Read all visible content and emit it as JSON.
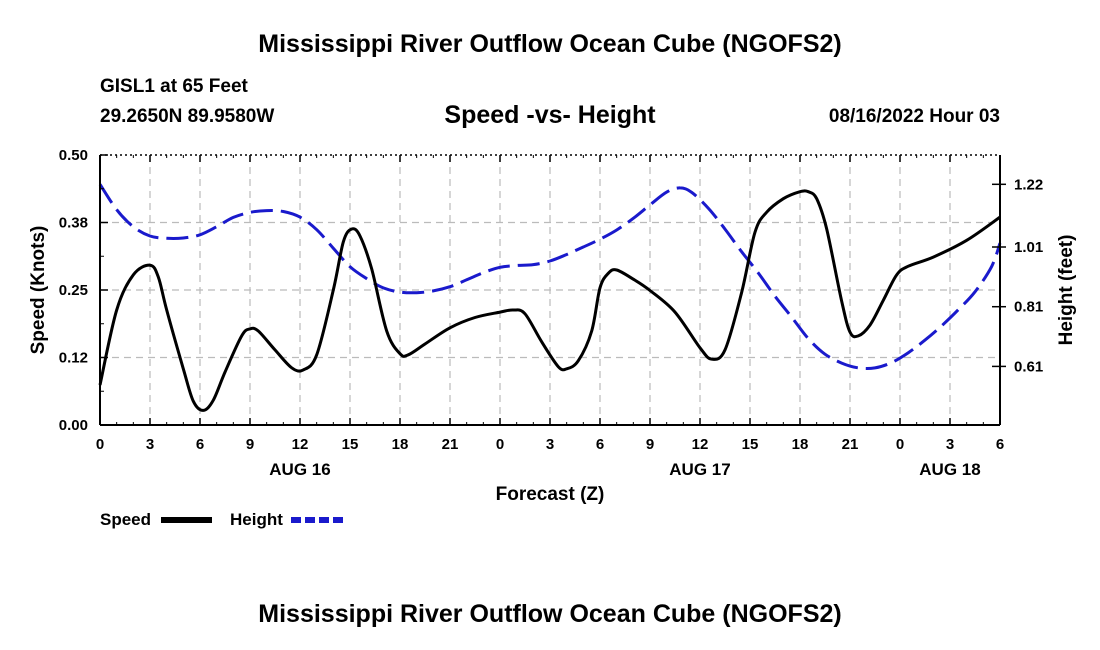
{
  "header": {
    "title": "Mississippi River Outflow Ocean Cube (NGOFS2)",
    "station": "GISL1 at 65 Feet",
    "coords": "29.2650N  89.9580W",
    "subtitle": "Speed -vs- Height",
    "datetime": "08/16/2022 Hour 03"
  },
  "footer": {
    "title": "Mississippi River Outflow Ocean Cube (NGOFS2)"
  },
  "chart_data": {
    "type": "line",
    "title": "Speed -vs- Height",
    "xlabel": "Forecast (Z)",
    "ylabel": "Speed (Knots)",
    "y2label": "Height (feet)",
    "x_range": [
      0,
      54
    ],
    "ylim": [
      0,
      0.5
    ],
    "y2lim": [
      0.4137,
      1.3182
    ],
    "xticks": [
      {
        "x": 0,
        "label": "0"
      },
      {
        "x": 3,
        "label": "3"
      },
      {
        "x": 6,
        "label": "6"
      },
      {
        "x": 9,
        "label": "9"
      },
      {
        "x": 12,
        "label": "12"
      },
      {
        "x": 15,
        "label": "15"
      },
      {
        "x": 18,
        "label": "18"
      },
      {
        "x": 21,
        "label": "21"
      },
      {
        "x": 24,
        "label": "0"
      },
      {
        "x": 27,
        "label": "3"
      },
      {
        "x": 30,
        "label": "6"
      },
      {
        "x": 33,
        "label": "9"
      },
      {
        "x": 36,
        "label": "12"
      },
      {
        "x": 39,
        "label": "15"
      },
      {
        "x": 42,
        "label": "18"
      },
      {
        "x": 45,
        "label": "21"
      },
      {
        "x": 48,
        "label": "0"
      },
      {
        "x": 51,
        "label": "3"
      },
      {
        "x": 54,
        "label": "6"
      }
    ],
    "date_labels": [
      {
        "x": 12,
        "label": "AUG 16"
      },
      {
        "x": 36,
        "label": "AUG 17"
      },
      {
        "x": 51,
        "label": "AUG 18"
      }
    ],
    "yticks": [
      {
        "v": 0.0,
        "label": "0.00"
      },
      {
        "v": 0.125,
        "label": "0.12"
      },
      {
        "v": 0.25,
        "label": "0.25"
      },
      {
        "v": 0.375,
        "label": "0.38"
      },
      {
        "v": 0.5,
        "label": "0.50"
      }
    ],
    "y2ticks": [
      {
        "v": 0.61,
        "label": "0.61"
      },
      {
        "v": 0.81,
        "label": "0.81"
      },
      {
        "v": 1.01,
        "label": "1.01"
      },
      {
        "v": 1.22,
        "label": "1.22"
      }
    ],
    "legend": [
      {
        "name": "Speed",
        "color": "#000000"
      },
      {
        "name": "Height",
        "color": "#1a1acc"
      }
    ],
    "series": [
      {
        "name": "Speed",
        "axis": "left",
        "color": "#000000",
        "style": "solid",
        "points": [
          [
            0,
            0.074
          ],
          [
            1,
            0.213
          ],
          [
            2,
            0.278
          ],
          [
            3,
            0.296
          ],
          [
            3.5,
            0.274
          ],
          [
            4,
            0.213
          ],
          [
            5,
            0.104
          ],
          [
            5.6,
            0.044
          ],
          [
            6.2,
            0.027
          ],
          [
            6.8,
            0.046
          ],
          [
            7.5,
            0.098
          ],
          [
            8.5,
            0.165
          ],
          [
            9,
            0.178
          ],
          [
            9.5,
            0.174
          ],
          [
            10.5,
            0.139
          ],
          [
            11.5,
            0.106
          ],
          [
            12.2,
            0.102
          ],
          [
            13,
            0.13
          ],
          [
            14,
            0.25
          ],
          [
            14.6,
            0.339
          ],
          [
            15.1,
            0.363
          ],
          [
            15.6,
            0.35
          ],
          [
            16.3,
            0.289
          ],
          [
            17.2,
            0.174
          ],
          [
            18,
            0.132
          ],
          [
            18.5,
            0.13
          ],
          [
            19.5,
            0.15
          ],
          [
            21,
            0.18
          ],
          [
            22.5,
            0.199
          ],
          [
            24,
            0.209
          ],
          [
            24.8,
            0.213
          ],
          [
            25.5,
            0.206
          ],
          [
            26.5,
            0.154
          ],
          [
            27.5,
            0.108
          ],
          [
            28,
            0.104
          ],
          [
            28.7,
            0.119
          ],
          [
            29.5,
            0.174
          ],
          [
            30,
            0.254
          ],
          [
            30.5,
            0.281
          ],
          [
            31,
            0.287
          ],
          [
            32,
            0.27
          ],
          [
            33,
            0.249
          ],
          [
            34.5,
            0.209
          ],
          [
            36,
            0.143
          ],
          [
            36.7,
            0.122
          ],
          [
            37.5,
            0.139
          ],
          [
            38.5,
            0.246
          ],
          [
            39.3,
            0.357
          ],
          [
            40,
            0.394
          ],
          [
            41,
            0.419
          ],
          [
            42,
            0.432
          ],
          [
            42.5,
            0.432
          ],
          [
            43,
            0.419
          ],
          [
            43.6,
            0.363
          ],
          [
            44.5,
            0.229
          ],
          [
            45,
            0.172
          ],
          [
            45.5,
            0.165
          ],
          [
            46.2,
            0.185
          ],
          [
            47,
            0.231
          ],
          [
            47.8,
            0.278
          ],
          [
            48.5,
            0.294
          ],
          [
            50,
            0.311
          ],
          [
            52,
            0.342
          ],
          [
            54,
            0.385
          ]
        ]
      },
      {
        "name": "Height",
        "axis": "right",
        "color": "#1a1acc",
        "style": "dashed",
        "points": [
          [
            0,
            1.22
          ],
          [
            1,
            1.135
          ],
          [
            2,
            1.078
          ],
          [
            3,
            1.047
          ],
          [
            4,
            1.039
          ],
          [
            5,
            1.04
          ],
          [
            6,
            1.051
          ],
          [
            7,
            1.078
          ],
          [
            8,
            1.109
          ],
          [
            9,
            1.126
          ],
          [
            10,
            1.132
          ],
          [
            11,
            1.129
          ],
          [
            12,
            1.11
          ],
          [
            13,
            1.068
          ],
          [
            14,
            1.006
          ],
          [
            15,
            0.944
          ],
          [
            16,
            0.904
          ],
          [
            17,
            0.873
          ],
          [
            18,
            0.859
          ],
          [
            19,
            0.857
          ],
          [
            20,
            0.863
          ],
          [
            21,
            0.877
          ],
          [
            22,
            0.9
          ],
          [
            23,
            0.924
          ],
          [
            24,
            0.942
          ],
          [
            25,
            0.948
          ],
          [
            26,
            0.951
          ],
          [
            27,
            0.963
          ],
          [
            28,
            0.985
          ],
          [
            29,
            1.01
          ],
          [
            30,
            1.036
          ],
          [
            31,
            1.067
          ],
          [
            32,
            1.106
          ],
          [
            33,
            1.151
          ],
          [
            34,
            1.194
          ],
          [
            34.8,
            1.208
          ],
          [
            35.5,
            1.193
          ],
          [
            36.5,
            1.14
          ],
          [
            37.5,
            1.07
          ],
          [
            38.5,
            0.994
          ],
          [
            39.5,
            0.923
          ],
          [
            40.5,
            0.845
          ],
          [
            41.5,
            0.775
          ],
          [
            42.5,
            0.703
          ],
          [
            43.5,
            0.651
          ],
          [
            44.5,
            0.621
          ],
          [
            45.5,
            0.605
          ],
          [
            46.5,
            0.605
          ],
          [
            47.5,
            0.623
          ],
          [
            48.5,
            0.656
          ],
          [
            49.5,
            0.698
          ],
          [
            50.5,
            0.746
          ],
          [
            51.5,
            0.8
          ],
          [
            52.5,
            0.86
          ],
          [
            53.5,
            0.945
          ],
          [
            54,
            1.023
          ]
        ]
      }
    ]
  }
}
